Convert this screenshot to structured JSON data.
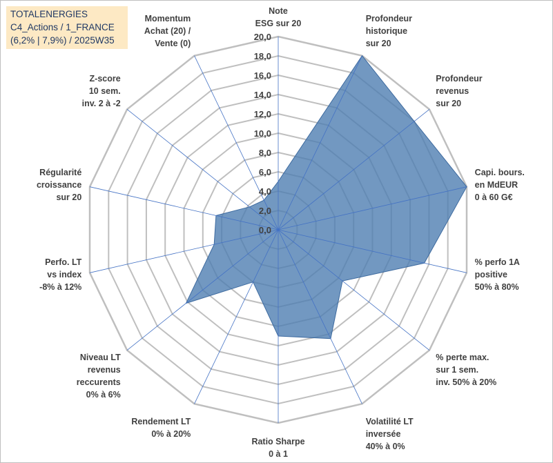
{
  "header": {
    "line1": "TOTALENERGIES",
    "line2": "C4_Actions / 1_FRANCE",
    "line3": "(6,2% | 7,9%) / 2025W35"
  },
  "chart_data": {
    "type": "radar",
    "rmin": 0,
    "rmax": 20,
    "step": 2,
    "tick_labels": [
      "0,0",
      "2,0",
      "4,0",
      "6,0",
      "8,0",
      "10,0",
      "12,0",
      "14,0",
      "16,0",
      "18,0",
      "20,0"
    ],
    "axes": [
      [
        "Note",
        "ESG sur 20"
      ],
      [
        "Profondeur",
        "historique",
        "sur 20"
      ],
      [
        "Profondeur",
        "revenus",
        "sur 20"
      ],
      [
        "Capi. bours.",
        "en MdEUR",
        "0 à 60 G€"
      ],
      [
        "% perfo 1A",
        "positive",
        "50% à 80%"
      ],
      [
        "% perte max.",
        "sur 1 sem.",
        "inv. 50% à 20%"
      ],
      [
        "Volatilité LT",
        "inversée",
        "40% à 0%"
      ],
      [
        "Ratio Sharpe",
        "0 à 1"
      ],
      [
        "Rendement LT",
        "0% à 20%"
      ],
      [
        "Niveau LT",
        "revenus",
        "reccurents",
        "0% à 6%"
      ],
      [
        "Perfo. LT",
        "vs index",
        "-8% à 12%"
      ],
      [
        "Régularité",
        "croissance",
        "sur 20"
      ],
      [
        "Z-score",
        "10 sem.",
        "inv. 2 à -2"
      ],
      [
        "Momentum",
        "Achat (20) /",
        "Vente (0)"
      ]
    ],
    "series": [
      {
        "values": [
          5,
          20,
          18,
          20,
          15.5,
          8.5,
          12.5,
          11,
          6,
          12.2,
          6.8,
          6.6,
          3.8,
          3.4
        ]
      }
    ],
    "fill_color": "#4f7eb2",
    "grid_color": "#bfbfbf",
    "spoke_color": "#4472c4",
    "grid": true
  }
}
